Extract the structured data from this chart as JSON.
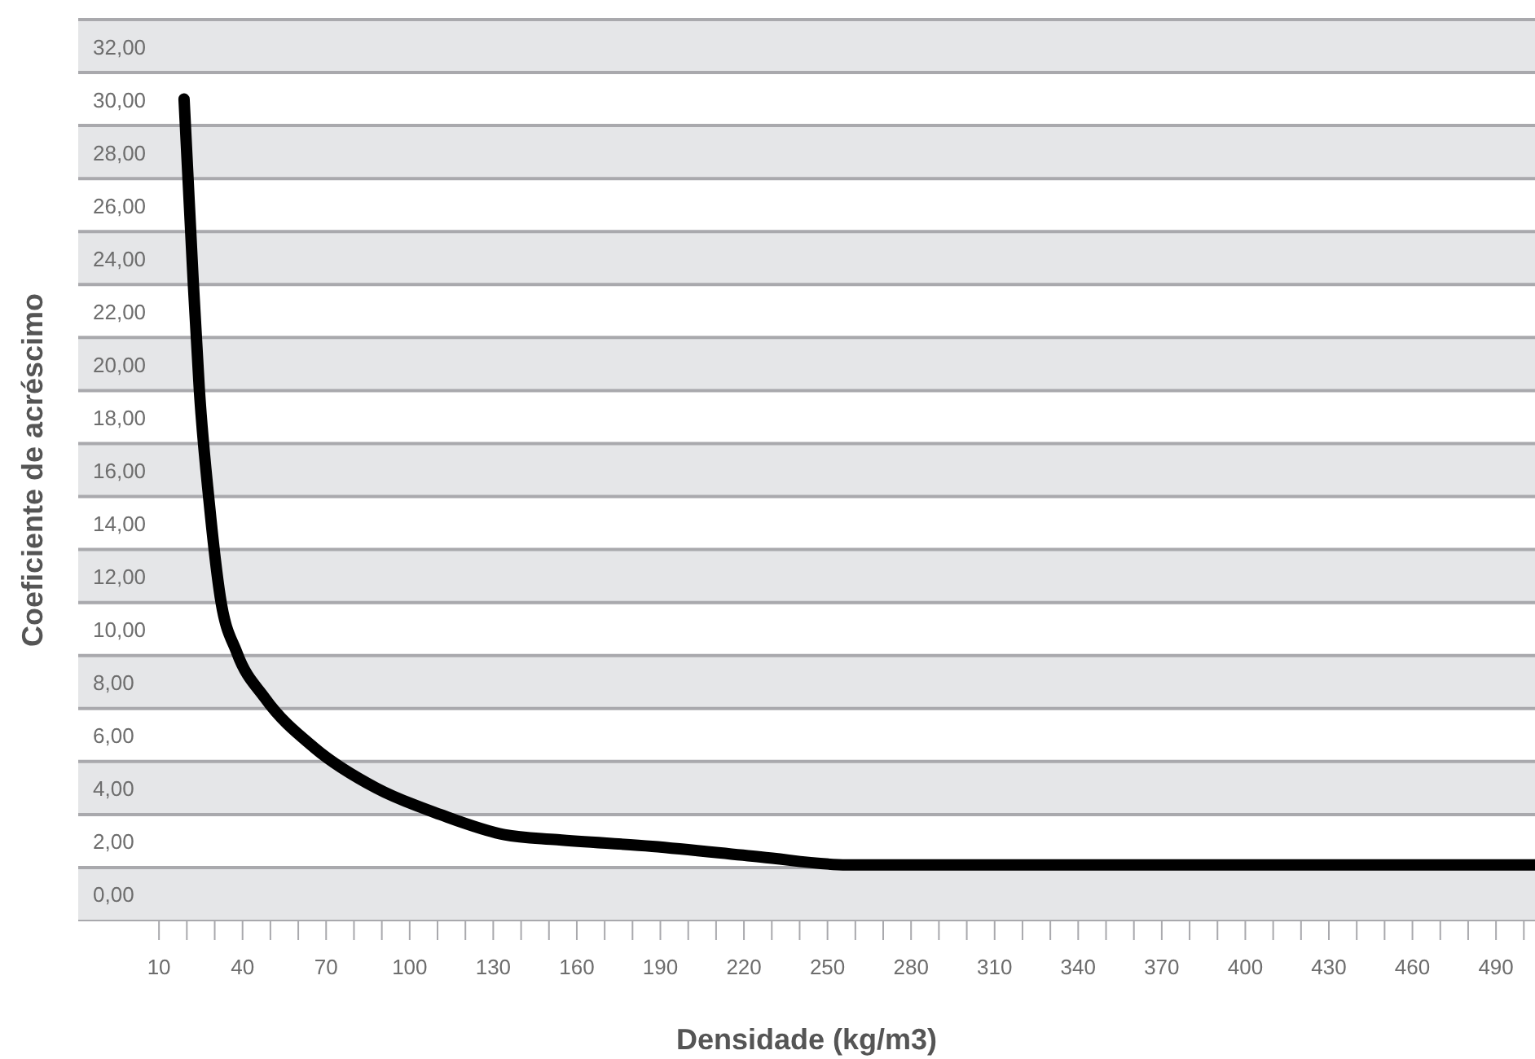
{
  "chart_data": {
    "type": "line",
    "xlabel": "Densidade (kg/m3)",
    "ylabel": "Coeficiente de acréscimo",
    "x": [
      19,
      22,
      24.5,
      28,
      32,
      38,
      48,
      66,
      88,
      111,
      134,
      153,
      187,
      226,
      257,
      504
    ],
    "series": [
      {
        "color": "#000000",
        "values": [
          30,
          23.7,
          19,
          14.8,
          11.2,
          9.1,
          7.4,
          5.5,
          4,
          3,
          2.24,
          2.05,
          1.8,
          1.4,
          1.1,
          1.1
        ]
      }
    ],
    "xlim": [
      -19,
      504
    ],
    "ylim": [
      -1,
      33
    ],
    "xticks": [
      {
        "value": 10,
        "label": "10"
      },
      {
        "value": 20,
        "label": null
      },
      {
        "value": 30,
        "label": null
      },
      {
        "value": 40,
        "label": "40"
      },
      {
        "value": 50,
        "label": null
      },
      {
        "value": 60,
        "label": null
      },
      {
        "value": 70,
        "label": "70"
      },
      {
        "value": 80,
        "label": null
      },
      {
        "value": 90,
        "label": null
      },
      {
        "value": 100,
        "label": "100"
      },
      {
        "value": 110,
        "label": null
      },
      {
        "value": 120,
        "label": null
      },
      {
        "value": 130,
        "label": "130"
      },
      {
        "value": 140,
        "label": null
      },
      {
        "value": 150,
        "label": null
      },
      {
        "value": 160,
        "label": "160"
      },
      {
        "value": 170,
        "label": null
      },
      {
        "value": 180,
        "label": null
      },
      {
        "value": 190,
        "label": "190"
      },
      {
        "value": 200,
        "label": null
      },
      {
        "value": 210,
        "label": null
      },
      {
        "value": 220,
        "label": "220"
      },
      {
        "value": 230,
        "label": null
      },
      {
        "value": 240,
        "label": null
      },
      {
        "value": 250,
        "label": "250"
      },
      {
        "value": 260,
        "label": null
      },
      {
        "value": 270,
        "label": null
      },
      {
        "value": 280,
        "label": "280"
      },
      {
        "value": 290,
        "label": null
      },
      {
        "value": 300,
        "label": null
      },
      {
        "value": 310,
        "label": "310"
      },
      {
        "value": 320,
        "label": null
      },
      {
        "value": 330,
        "label": null
      },
      {
        "value": 340,
        "label": "340"
      },
      {
        "value": 350,
        "label": null
      },
      {
        "value": 360,
        "label": null
      },
      {
        "value": 370,
        "label": "370"
      },
      {
        "value": 380,
        "label": null
      },
      {
        "value": 390,
        "label": null
      },
      {
        "value": 400,
        "label": "400"
      },
      {
        "value": 410,
        "label": null
      },
      {
        "value": 420,
        "label": null
      },
      {
        "value": 430,
        "label": "430"
      },
      {
        "value": 440,
        "label": null
      },
      {
        "value": 450,
        "label": null
      },
      {
        "value": 460,
        "label": "460"
      },
      {
        "value": 470,
        "label": null
      },
      {
        "value": 480,
        "label": null
      },
      {
        "value": 490,
        "label": "490"
      },
      {
        "value": 500,
        "label": null
      }
    ],
    "yticks": [
      {
        "value": 0,
        "label": "0,00"
      },
      {
        "value": 2,
        "label": "2,00"
      },
      {
        "value": 4,
        "label": "4,00"
      },
      {
        "value": 6,
        "label": "6,00"
      },
      {
        "value": 8,
        "label": "8,00"
      },
      {
        "value": 10,
        "label": "10,00"
      },
      {
        "value": 12,
        "label": "12,00"
      },
      {
        "value": 14,
        "label": "14,00"
      },
      {
        "value": 16,
        "label": "16,00"
      },
      {
        "value": 18,
        "label": "18,00"
      },
      {
        "value": 20,
        "label": "20,00"
      },
      {
        "value": 22,
        "label": "22,00"
      },
      {
        "value": 24,
        "label": "24,00"
      },
      {
        "value": 26,
        "label": "26,00"
      },
      {
        "value": 28,
        "label": "28,00"
      },
      {
        "value": 30,
        "label": "30,00"
      },
      {
        "value": 32,
        "label": "32,00"
      }
    ],
    "bands": [
      {
        "axis": "y",
        "from": -1,
        "to": 1,
        "color": "#e5e6e8"
      },
      {
        "axis": "y",
        "from": 3,
        "to": 5,
        "color": "#e5e6e8"
      },
      {
        "axis": "y",
        "from": 7,
        "to": 9,
        "color": "#e5e6e8"
      },
      {
        "axis": "y",
        "from": 11,
        "to": 13,
        "color": "#e5e6e8"
      },
      {
        "axis": "y",
        "from": 15,
        "to": 17,
        "color": "#e5e6e8"
      },
      {
        "axis": "y",
        "from": 19,
        "to": 21,
        "color": "#e5e6e8"
      },
      {
        "axis": "y",
        "from": 23,
        "to": 25,
        "color": "#e5e6e8"
      },
      {
        "axis": "y",
        "from": 27,
        "to": 29,
        "color": "#e5e6e8"
      },
      {
        "axis": "y",
        "from": 31,
        "to": 33,
        "color": "#e5e6e8"
      }
    ],
    "grid": false,
    "legend": false,
    "marker": "none",
    "line_style": "solid"
  }
}
